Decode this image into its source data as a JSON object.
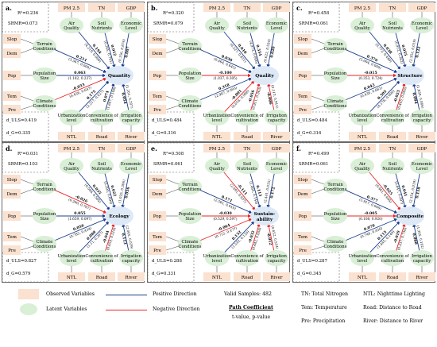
{
  "colors": {
    "observed_fill": "#fbe1cf",
    "latent_fill": "#d9efd6",
    "outcome_fill": "#dde9f7",
    "positive": "#1d3f8c",
    "negative": "#e8252a",
    "border": "#444444"
  },
  "labels": {
    "top_pm25": "PM 2.5",
    "top_tn": "TN",
    "top_gdp": "GDP",
    "air_quality": "Air Quality",
    "soil_nutrients": "Soil Nutrients",
    "economic_level": "Economic Level",
    "slop": "Slop",
    "dem": "Dem",
    "pop": "Pop",
    "tem": "Tem",
    "pre": "Pre",
    "terrain": "Terrain Conditions",
    "population": "Population Size",
    "climate": "Climate Conditions",
    "urbanization": "Urbanization level",
    "convenience": "Convenience of cultivation",
    "irrigation": "Irrigation capacity",
    "ntl": "NTL",
    "road": "Road",
    "river": "River",
    "duls_prefix": "d_ULS=",
    "dg_prefix": "d_G="
  },
  "panels": [
    {
      "id": "a.",
      "r2": "R²=0.236",
      "srmr": "SRMR=0.073",
      "target": "Quantity",
      "d_uls": "0.419",
      "d_g": "0.335",
      "paths": {
        "air": {
          "coef": "0.194",
          "stat": "(4.219, 0.000)",
          "sign": "pos"
        },
        "soil": {
          "coef": "0.012",
          "stat": "(0.265, 0.791)",
          "sign": "pos"
        },
        "econ": {
          "coef": "0.007",
          "stat": "(0.156, 0.876)",
          "sign": "pos"
        },
        "terrain": {
          "coef": "0.211",
          "stat": "(3.567, 0.000)",
          "sign": "pos"
        },
        "pop": {
          "coef": "0.063",
          "stat": "(1.182, 0.237)",
          "sign": "pos"
        },
        "climate": {
          "coef": "-0.033",
          "stat": "(0.458, 0.647)",
          "sign": "neg"
        },
        "urban": {
          "coef": "0.175",
          "stat": "(2.217, 0.027)",
          "sign": "pos"
        },
        "conv": {
          "coef": "0.074",
          "stat": "(1.607, 0.108)",
          "sign": "pos"
        },
        "irrig": {
          "coef": "0.054",
          "stat": "(1.261, 0.207)",
          "sign": "pos"
        }
      }
    },
    {
      "id": "b.",
      "r2": "R²=0.320",
      "srmr": "SRMR=0.079",
      "target": "Quality",
      "d_uls": "0.484",
      "d_g": "0.316",
      "paths": {
        "air": {
          "coef": "0.010",
          "stat": "(0.227, 0.821)",
          "sign": "pos"
        },
        "soil": {
          "coef": "0.354",
          "stat": "(4.972, 0.000)",
          "sign": "pos"
        },
        "econ": {
          "coef": "0.020",
          "stat": "(0.622, 0.534)",
          "sign": "pos"
        },
        "terrain": {
          "coef": "0.030",
          "stat": "(0.464, 0.643)",
          "sign": "pos"
        },
        "pop": {
          "coef": "-0.100",
          "stat": "(1.037, 0.305)",
          "sign": "neg"
        },
        "climate": {
          "coef": "0.318",
          "stat": "(2.967, 0.003)",
          "sign": "pos"
        },
        "urban": {
          "coef": "-0.001",
          "stat": "(0.016, 0.988)",
          "sign": "neg"
        },
        "conv": {
          "coef": "-0.056",
          "stat": "(0.911, 0.363)",
          "sign": "neg"
        },
        "irrig": {
          "coef": "-0.006",
          "stat": "(0.113, 0.911)",
          "sign": "neg"
        }
      }
    },
    {
      "id": "c.",
      "r2": "R²=0.458",
      "srmr": "SRMR=0.061",
      "target": "Structure",
      "d_uls": "0.484",
      "d_g": "0.316",
      "paths": {
        "air": {
          "coef": "0.038",
          "stat": "(0.772, 0.440)",
          "sign": "pos"
        },
        "soil": {
          "coef": "0.055",
          "stat": "(0.912, 0.362)",
          "sign": "pos"
        },
        "econ": {
          "coef": "0.122",
          "stat": "(2.352, 0.019)",
          "sign": "pos"
        },
        "terrain": {
          "coef": "0.376",
          "stat": "(5.004, 0.000)",
          "sign": "pos"
        },
        "pop": {
          "coef": "-0.015",
          "stat": "(0.353, 0.724)",
          "sign": "neg"
        },
        "climate": {
          "coef": "0.042",
          "stat": "(0.439, 0.661)",
          "sign": "pos"
        },
        "urban": {
          "coef": "0.305",
          "stat": "(4.176, 0.000)",
          "sign": "pos"
        },
        "conv": {
          "coef": "-0.023",
          "stat": "(0.405, 0.685)",
          "sign": "neg"
        },
        "irrig": {
          "coef": "0.094",
          "stat": "(1.839, 0.066)",
          "sign": "pos"
        }
      }
    },
    {
      "id": "d.",
      "r2": "R²=0.031",
      "srmr": "SRMR=0.103",
      "target": "Ecology",
      "d_uls": "0.827",
      "d_g": "0.579",
      "paths": {
        "air": {
          "coef": "0.035",
          "stat": "(0.546, 0.585)",
          "sign": "pos"
        },
        "soil": {
          "coef": "0.022",
          "stat": "(0.393, 0.694)",
          "sign": "pos"
        },
        "econ": {
          "coef": "0.056",
          "stat": "(1.025, 0.306)",
          "sign": "pos"
        },
        "terrain": {
          "coef": "-0.026",
          "stat": "(0.290, 0.767)",
          "sign": "neg"
        },
        "pop": {
          "coef": "0.055",
          "stat": "(1.659, 0.097)",
          "sign": "pos"
        },
        "climate": {
          "coef": "0.056",
          "stat": "(0.783, 0.434)",
          "sign": "pos"
        },
        "urban": {
          "coef": "0.088",
          "stat": "(1.11, 0.267)",
          "sign": "pos"
        },
        "conv": {
          "coef": "-0.044",
          "stat": "(0.659, 0.510)",
          "sign": "neg"
        },
        "irrig": {
          "coef": "0.113",
          "stat": "(2.065, 0.039)",
          "sign": "pos"
        }
      }
    },
    {
      "id": "e.",
      "r2": "R²=0.508",
      "srmr": "SRMR=0.061",
      "target": "Sustain-ability",
      "d_uls": "0.288",
      "d_g": "0.331",
      "paths": {
        "air": {
          "coef": "-0.111",
          "stat": "(2.091, 0.037)",
          "sign": "neg"
        },
        "soil": {
          "coef": "0.113",
          "stat": "(1.465, 0.144)",
          "sign": "pos"
        },
        "econ": {
          "coef": "0.172",
          "stat": "(2.441, 0.015)",
          "sign": "pos"
        },
        "terrain": {
          "coef": "0.171",
          "stat": "(2.561, 0.010)",
          "sign": "pos"
        },
        "pop": {
          "coef": "-0.030",
          "stat": "(0.529, 0.597)",
          "sign": "neg"
        },
        "climate": {
          "coef": "-0.064",
          "stat": "(0.712, 0.477)",
          "sign": "neg"
        },
        "urban": {
          "coef": "0.132",
          "stat": "(1.532, 0.126)",
          "sign": "pos"
        },
        "conv": {
          "coef": "-0.032",
          "stat": "(0.442, 0.658)",
          "sign": "neg"
        },
        "irrig": {
          "coef": "-0.012",
          "stat": "(0.652, 0.514)",
          "sign": "neg"
        }
      }
    },
    {
      "id": "f.",
      "r2": "R²=0.499",
      "srmr": "SRMR=0.061",
      "target": "Composite",
      "d_uls": "0.287",
      "d_g": "0.345",
      "paths": {
        "air": {
          "coef": "-0.025",
          "stat": "(0.461, 0.645)",
          "sign": "neg"
        },
        "soil": {
          "coef": "0.041",
          "stat": "(0.847, 0.397)",
          "sign": "pos"
        },
        "econ": {
          "coef": "0.118",
          "stat": "(2.354, 0.019)",
          "sign": "pos"
        },
        "terrain": {
          "coef": "0.377",
          "stat": "(5.917, 0.000)",
          "sign": "pos"
        },
        "pop": {
          "coef": "-0.005",
          "stat": "(0.108, 0.920)",
          "sign": "neg"
        },
        "climate": {
          "coef": "0.070",
          "stat": "(0.746, 0.456)",
          "sign": "pos"
        },
        "urban": {
          "coef": "0.115",
          "stat": "(1.445, 0.149)",
          "sign": "pos"
        },
        "conv": {
          "coef": "-0.019",
          "stat": "(0.337, 0.736)",
          "sign": "neg"
        },
        "irrig": {
          "coef": "0.060",
          "stat": "(1.305, 0.192)",
          "sign": "pos"
        }
      }
    }
  ],
  "legend": {
    "observed": "Observed Variables",
    "latent": "Latent Variables",
    "positive": "Positive Direction",
    "negative": "Negative Direction",
    "valid": "Valid Samples: 482",
    "path_coef": "Path Coefficient",
    "tval": "t-value, p-value",
    "tn": "TN: Total Nitrogen",
    "tem": "Tem: Temperature",
    "pre": "Pre: Precipitation",
    "ntl": "NTL: Nighttime Lighting",
    "road": "Road: Distance to Road",
    "river": "River: Distance to River"
  }
}
